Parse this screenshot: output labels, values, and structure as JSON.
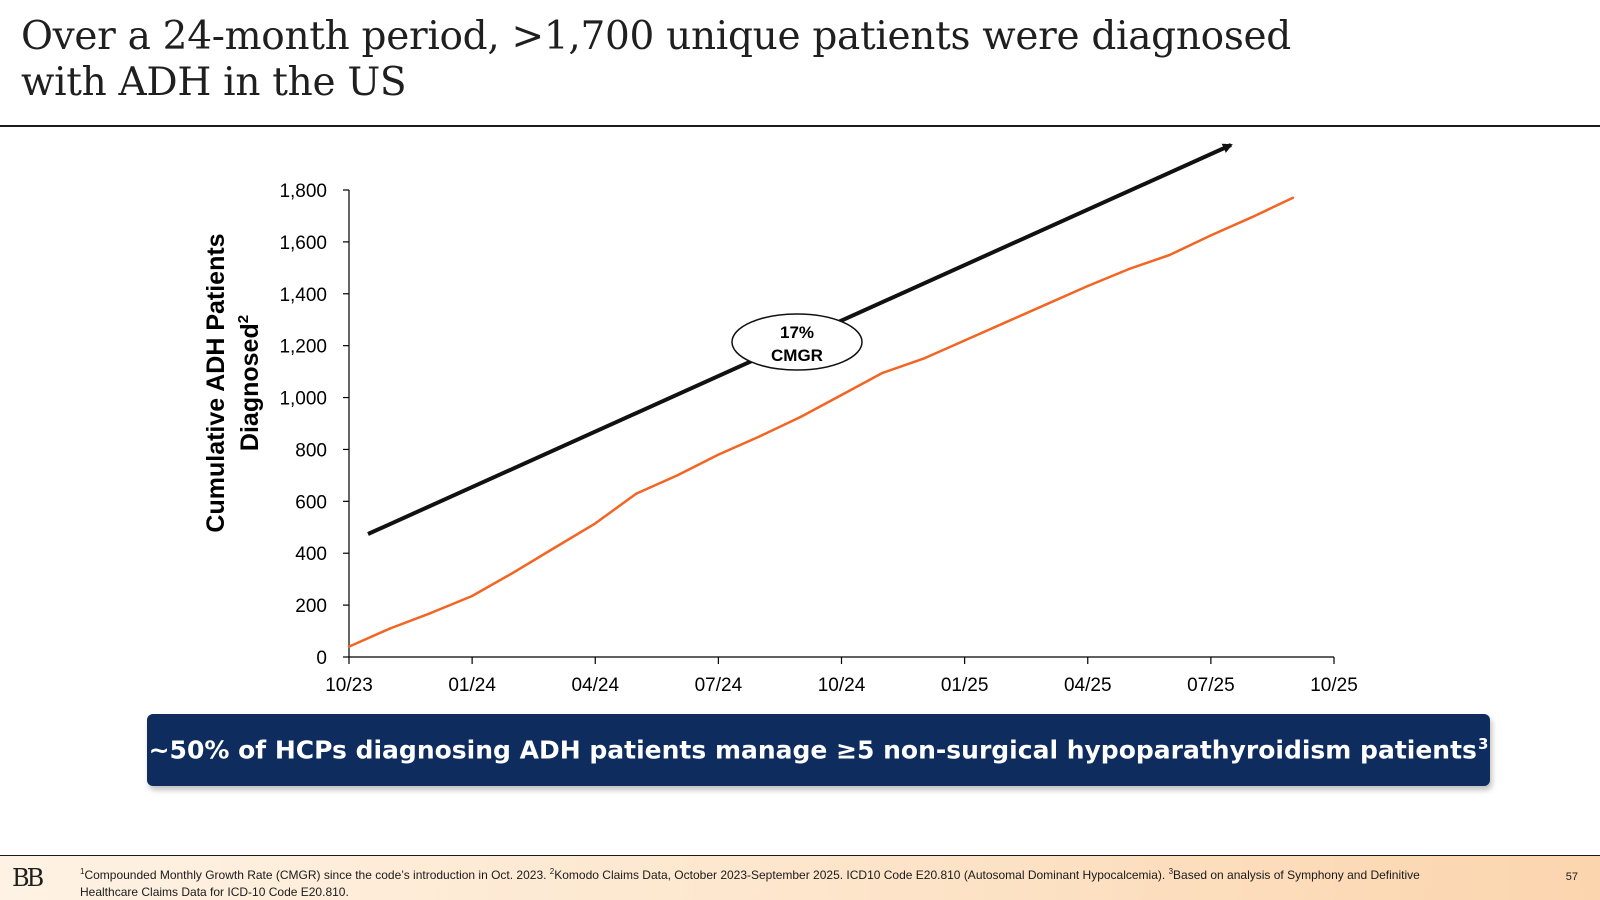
{
  "title": {
    "line1": "Over a 24-month period, >1,700 unique patients were diagnosed",
    "line2": "with ADH in the US"
  },
  "chart_data": {
    "type": "line",
    "ylabel_line1": "Cumulative ADH Patients",
    "ylabel_line2": "Diagnosed",
    "ylabel_sup": "2",
    "ylim": [
      0,
      1800
    ],
    "y_ticks": [
      0,
      200,
      400,
      600,
      800,
      1000,
      1200,
      1400,
      1600,
      1800
    ],
    "y_tick_labels": [
      "0",
      "200",
      "400",
      "600",
      "800",
      "1,000",
      "1,200",
      "1,400",
      "1,600",
      "1,800"
    ],
    "xlim": [
      "10/23",
      "10/25"
    ],
    "x_ticks": [
      "10/23",
      "01/24",
      "04/24",
      "07/24",
      "10/24",
      "01/25",
      "04/25",
      "07/25",
      "10/25"
    ],
    "series": [
      {
        "color": "#f26522",
        "x": [
          "10/23",
          "11/23",
          "12/23",
          "01/24",
          "02/24",
          "03/24",
          "04/24",
          "05/24",
          "06/24",
          "07/24",
          "08/24",
          "09/24",
          "10/24",
          "11/24",
          "12/24",
          "01/25",
          "02/25",
          "03/25",
          "04/25",
          "05/25",
          "06/25",
          "07/25",
          "08/25",
          "09/25"
        ],
        "values": [
          40,
          110,
          170,
          235,
          325,
          420,
          515,
          630,
          700,
          780,
          850,
          925,
          1010,
          1095,
          1150,
          1220,
          1290,
          1360,
          1430,
          1495,
          1550,
          1625,
          1695,
          1770
        ]
      }
    ],
    "trend_annotation": {
      "line1": "17%",
      "line2": "CMGR"
    },
    "grid": false,
    "legend": "none"
  },
  "callout": {
    "text": "~50% of HCPs diagnosing ADH patients manage ≥5 non-surgical hypoparathyroidism patients",
    "sup": "3"
  },
  "footer": {
    "logo": "BB",
    "sup1": "1",
    "note1": "Compounded Monthly Growth Rate (CMGR) since the code’s introduction in Oct. 2023. ",
    "sup2": "2",
    "note2": "Komodo Claims Data, October 2023-September 2025. ICD10 Code E20.810 (Autosomal Dominant Hypocalcemia). ",
    "sup3": "3",
    "note3": "Based on analysis of Symphony and Definitive Healthcare Claims Data for ICD-10 Code E20.810.",
    "page_number": "57"
  }
}
